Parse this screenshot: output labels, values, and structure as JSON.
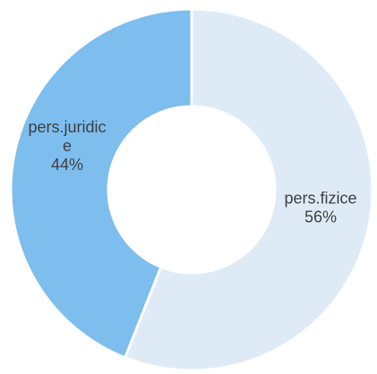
{
  "chart_data": {
    "type": "pie",
    "variant": "donut",
    "start": "top, clockwise",
    "slices": [
      {
        "name": "pers.fizice",
        "label_lines": [
          "pers.fizice",
          "56%"
        ],
        "value": 56,
        "color": "#DEEBF7"
      },
      {
        "name": "pers.juridice",
        "label_lines": [
          "pers.juridic",
          "e",
          "44%"
        ],
        "value": 44,
        "color": "#7DBEEF"
      }
    ],
    "legend": "none",
    "border_color": "#FFFFFF"
  }
}
